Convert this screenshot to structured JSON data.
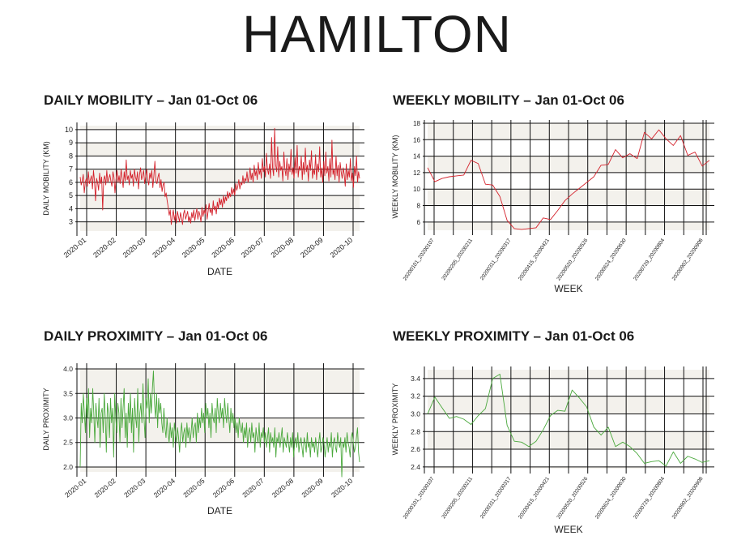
{
  "title": "HAMILTON",
  "colors": {
    "mobility": "#d4212b",
    "proximity": "#4aa83c",
    "band": "#f3f1ec",
    "grid": "#111111"
  },
  "chart_data": [
    {
      "id": "daily-mobility",
      "type": "line",
      "title": "DAILY MOBILITY – Jan 01-Oct 06",
      "xlabel": "DATE",
      "ylabel": "DAILY MOBILITY (KM)",
      "ylim": [
        2.3,
        10.3
      ],
      "yticks": [
        "3",
        "4",
        "5",
        "6",
        "7",
        "8",
        "9",
        "10"
      ],
      "xticks": [
        "2020-01",
        "2020-02",
        "2020-03",
        "2020-04",
        "2020-05",
        "2020-06",
        "2020-07",
        "2020-08",
        "2020-09",
        "2020-10"
      ],
      "grid": true,
      "series": [
        {
          "color": "#d4212b",
          "values": [
            6.4,
            5.8,
            6.1,
            6.6,
            5.2,
            6.0,
            6.3,
            5.7,
            6.8,
            5.9,
            6.2,
            6.5,
            5.5,
            6.9,
            6.1,
            4.6,
            6.3,
            6.0,
            5.4,
            6.7,
            5.9,
            6.4,
            3.9,
            6.2,
            6.5,
            5.8,
            6.9,
            6.0,
            6.3,
            6.6,
            6.1,
            5.7,
            6.8,
            6.4,
            5.2,
            6.2,
            6.9,
            6.0,
            6.5,
            5.9,
            7.0,
            6.3,
            5.6,
            6.8,
            6.1,
            7.7,
            6.2,
            6.5,
            5.8,
            6.9,
            6.3,
            6.6,
            5.7,
            7.0,
            6.4,
            6.1,
            6.8,
            5.5,
            6.6,
            7.1,
            6.2,
            6.5,
            6.9,
            5.9,
            6.4,
            7.0,
            6.2,
            5.8,
            6.7,
            6.3,
            6.9,
            5.6,
            6.5,
            7.6,
            6.1,
            5.9,
            6.4,
            6.7,
            5.6,
            6.2,
            5.3,
            5.8,
            6.0,
            4.9,
            5.2,
            4.6,
            4.1,
            3.5,
            3.9,
            2.8,
            3.4,
            3.9,
            3.1,
            3.6,
            2.9,
            3.8,
            3.4,
            3.0,
            3.7,
            3.3,
            2.8,
            3.6,
            3.9,
            3.2,
            3.5,
            3.8,
            3.0,
            3.4,
            2.9,
            3.7,
            3.3,
            3.9,
            3.1,
            3.6,
            4.0,
            3.2,
            3.8,
            3.5,
            3.0,
            4.1,
            3.4,
            3.9,
            3.6,
            4.3,
            3.2,
            3.8,
            4.4,
            3.7,
            4.0,
            3.5,
            4.6,
            3.9,
            4.2,
            3.6,
            4.5,
            4.0,
            4.8,
            4.3,
            4.7,
            4.1,
            5.0,
            4.4,
            4.9,
            4.6,
            5.3,
            4.8,
            5.2,
            4.9,
            5.6,
            5.1,
            5.5,
            5.0,
            5.9,
            5.4,
            5.7,
            6.2,
            5.5,
            6.0,
            5.8,
            6.5,
            5.9,
            6.3,
            6.1,
            6.8,
            6.0,
            6.4,
            7.1,
            6.2,
            6.7,
            6.0,
            7.3,
            6.5,
            6.9,
            6.2,
            7.5,
            6.6,
            7.0,
            6.3,
            7.8,
            6.8,
            7.2,
            6.4,
            8.2,
            7.0,
            6.6,
            7.4,
            6.3,
            9.4,
            7.1,
            6.5,
            10.1,
            7.3,
            6.8,
            8.7,
            6.4,
            7.6,
            6.9,
            7.2,
            6.1,
            8.3,
            7.0,
            6.5,
            7.8,
            6.2,
            7.4,
            6.8,
            8.5,
            6.6,
            7.1,
            6.3,
            7.9,
            6.7,
            8.8,
            6.4,
            7.2,
            6.9,
            8.0,
            6.2,
            7.5,
            6.6,
            8.6,
            6.8,
            7.3,
            6.1,
            7.7,
            6.9,
            8.4,
            6.3,
            7.0,
            6.6,
            8.1,
            6.2,
            7.4,
            6.8,
            8.7,
            6.4,
            7.1,
            6.0,
            7.6,
            6.5,
            8.3,
            6.7,
            7.2,
            6.1,
            7.8,
            6.4,
            9.2,
            6.6,
            7.0,
            6.2,
            8.0,
            6.5,
            7.3,
            6.0,
            7.5,
            6.8,
            6.3,
            7.1,
            6.6,
            5.7,
            7.4,
            6.2,
            6.9,
            6.4,
            7.8,
            6.1,
            6.7,
            5.6,
            7.2,
            6.5,
            8.0,
            6.0,
            6.8,
            6.3
          ]
        }
      ]
    },
    {
      "id": "weekly-mobility",
      "type": "line",
      "title": "WEEKLY MOBILITY – Jan 01-Oct 06",
      "xlabel": "WEEK",
      "ylabel": "WEEKLY MOBILITY (KM)",
      "ylim": [
        5,
        18
      ],
      "yticks": [
        "6",
        "8",
        "10",
        "12",
        "14",
        "16",
        "18"
      ],
      "xticks": [
        "20200101_20200107",
        "20200205_20200211",
        "20200311_20200317",
        "20200415_20200421",
        "20200520_20200526",
        "20200624_20200630",
        "20200729_20200804",
        "20200902_20200908"
      ],
      "grid": true,
      "series": [
        {
          "color": "#d4212b",
          "values": [
            12.6,
            10.9,
            11.3,
            11.5,
            11.6,
            11.7,
            13.5,
            13.1,
            10.6,
            10.5,
            9.1,
            6.2,
            5.2,
            5.1,
            5.2,
            5.3,
            6.5,
            6.3,
            7.4,
            8.6,
            9.4,
            10.1,
            10.8,
            11.5,
            12.9,
            13.0,
            14.8,
            13.8,
            14.3,
            13.7,
            16.9,
            16.1,
            17.2,
            16.1,
            15.3,
            16.5,
            14.1,
            14.5,
            12.8,
            13.5
          ]
        }
      ]
    },
    {
      "id": "daily-proximity",
      "type": "line",
      "title": "DAILY PROXIMITY – Jan 01-Oct 06",
      "xlabel": "DATE",
      "ylabel": "DAILY PROXIMITY",
      "ylim": [
        1.9,
        4.05
      ],
      "yticks": [
        "2.0",
        "2.5",
        "3.0",
        "3.5",
        "4.0"
      ],
      "xticks": [
        "2020-01",
        "2020-02",
        "2020-03",
        "2020-04",
        "2020-05",
        "2020-06",
        "2020-07",
        "2020-08",
        "2020-09",
        "2020-10"
      ],
      "grid": true,
      "series": [
        {
          "color": "#4aa83c",
          "values": [
            2.0,
            3.3,
            2.9,
            3.5,
            3.1,
            2.7,
            3.4,
            3.0,
            3.6,
            2.6,
            3.2,
            2.9,
            3.6,
            3.1,
            2.5,
            3.3,
            3.0,
            2.8,
            3.4,
            2.4,
            3.1,
            3.2,
            2.7,
            3.5,
            3.0,
            2.3,
            3.3,
            3.1,
            2.6,
            3.4,
            2.9,
            3.2,
            2.2,
            3.5,
            3.0,
            2.7,
            3.3,
            3.1,
            2.5,
            3.4,
            2.8,
            3.2,
            3.6,
            2.6,
            3.1,
            2.4,
            3.3,
            2.9,
            3.5,
            2.7,
            3.2,
            2.3,
            3.4,
            3.0,
            2.8,
            3.6,
            2.5,
            3.1,
            3.3,
            2.9,
            3.7,
            3.0,
            2.6,
            3.4,
            3.2,
            3.8,
            2.9,
            3.5,
            3.1,
            3.6,
            3.96,
            3.3,
            3.0,
            3.5,
            2.8,
            3.4,
            3.1,
            3.3,
            2.9,
            2.7,
            3.2,
            2.8,
            2.6,
            3.0,
            2.7,
            2.5,
            2.9,
            2.6,
            2.8,
            2.4,
            2.9,
            2.7,
            2.5,
            2.8,
            2.6,
            2.3,
            2.7,
            2.9,
            2.5,
            2.7,
            2.8,
            2.4,
            2.9,
            2.6,
            2.8,
            2.5,
            2.7,
            3.0,
            2.6,
            2.8,
            2.9,
            2.5,
            3.1,
            2.7,
            3.0,
            2.8,
            3.2,
            2.9,
            3.1,
            2.7,
            3.3,
            3.0,
            3.2,
            2.8,
            3.1,
            2.6,
            3.3,
            3.0,
            2.9,
            3.2,
            2.7,
            3.4,
            3.1,
            2.9,
            3.3,
            3.0,
            3.2,
            2.8,
            3.4,
            3.1,
            2.9,
            3.3,
            3.0,
            2.7,
            3.2,
            2.9,
            3.1,
            2.8,
            3.0,
            2.7,
            2.9,
            2.6,
            3.0,
            2.8,
            2.7,
            2.9,
            2.5,
            2.8,
            2.6,
            2.9,
            2.4,
            2.7,
            2.8,
            2.5,
            2.9,
            2.6,
            2.7,
            2.3,
            2.8,
            2.6,
            2.5,
            2.9,
            2.4,
            2.7,
            2.6,
            2.8,
            2.5,
            2.7,
            2.4,
            2.6,
            2.8,
            2.3,
            2.7,
            2.5,
            2.6,
            2.4,
            2.8,
            2.2,
            2.6,
            2.5,
            2.7,
            2.4,
            2.6,
            2.8,
            2.3,
            2.6,
            2.5,
            2.4,
            2.7,
            2.5,
            2.3,
            2.6,
            2.4,
            2.7,
            2.2,
            2.5,
            2.6,
            2.4,
            2.7,
            2.3,
            2.5,
            2.6,
            2.4,
            2.2,
            2.6,
            2.5,
            2.3,
            2.7,
            2.4,
            2.5,
            2.2,
            2.6,
            2.4,
            2.5,
            2.3,
            2.6,
            2.4,
            2.2,
            2.5,
            2.7,
            2.3,
            2.4,
            2.6,
            2.5,
            2.2,
            2.4,
            2.6,
            2.3,
            2.5,
            2.4,
            2.7,
            2.2,
            2.5,
            2.6,
            2.4,
            2.3,
            2.7,
            2.5,
            2.4,
            2.6,
            1.8,
            2.5,
            2.4,
            2.6,
            2.3,
            2.7,
            2.5,
            2.4,
            2.2,
            2.6,
            2.7,
            2.5,
            2.3,
            2.4,
            2.6,
            2.8,
            2.3,
            2.1
          ]
        }
      ]
    },
    {
      "id": "weekly-proximity",
      "type": "line",
      "title": "WEEKLY PROXIMITY – Jan 01-Oct 06",
      "xlabel": "WEEK",
      "ylabel": "WEEKLY PROXIMITY",
      "ylim": [
        2.38,
        3.5
      ],
      "yticks": [
        "2.4",
        "2.6",
        "2.8",
        "3.0",
        "3.2",
        "3.4"
      ],
      "xticks": [
        "20200101_20200107",
        "20200205_20200211",
        "20200311_20200317",
        "20200415_20200421",
        "20200520_20200526",
        "20200624_20200630",
        "20200729_20200804",
        "20200902_20200908"
      ],
      "grid": true,
      "series": [
        {
          "color": "#4aa83c",
          "values": [
            3.0,
            3.19,
            3.07,
            2.95,
            2.97,
            2.94,
            2.88,
            2.98,
            3.06,
            3.4,
            3.45,
            2.87,
            2.69,
            2.68,
            2.63,
            2.69,
            2.82,
            2.98,
            3.04,
            3.03,
            3.27,
            3.18,
            3.08,
            2.85,
            2.76,
            2.85,
            2.63,
            2.68,
            2.63,
            2.55,
            2.44,
            2.46,
            2.47,
            2.41,
            2.57,
            2.44,
            2.52,
            2.49,
            2.45,
            2.47
          ]
        }
      ]
    }
  ]
}
